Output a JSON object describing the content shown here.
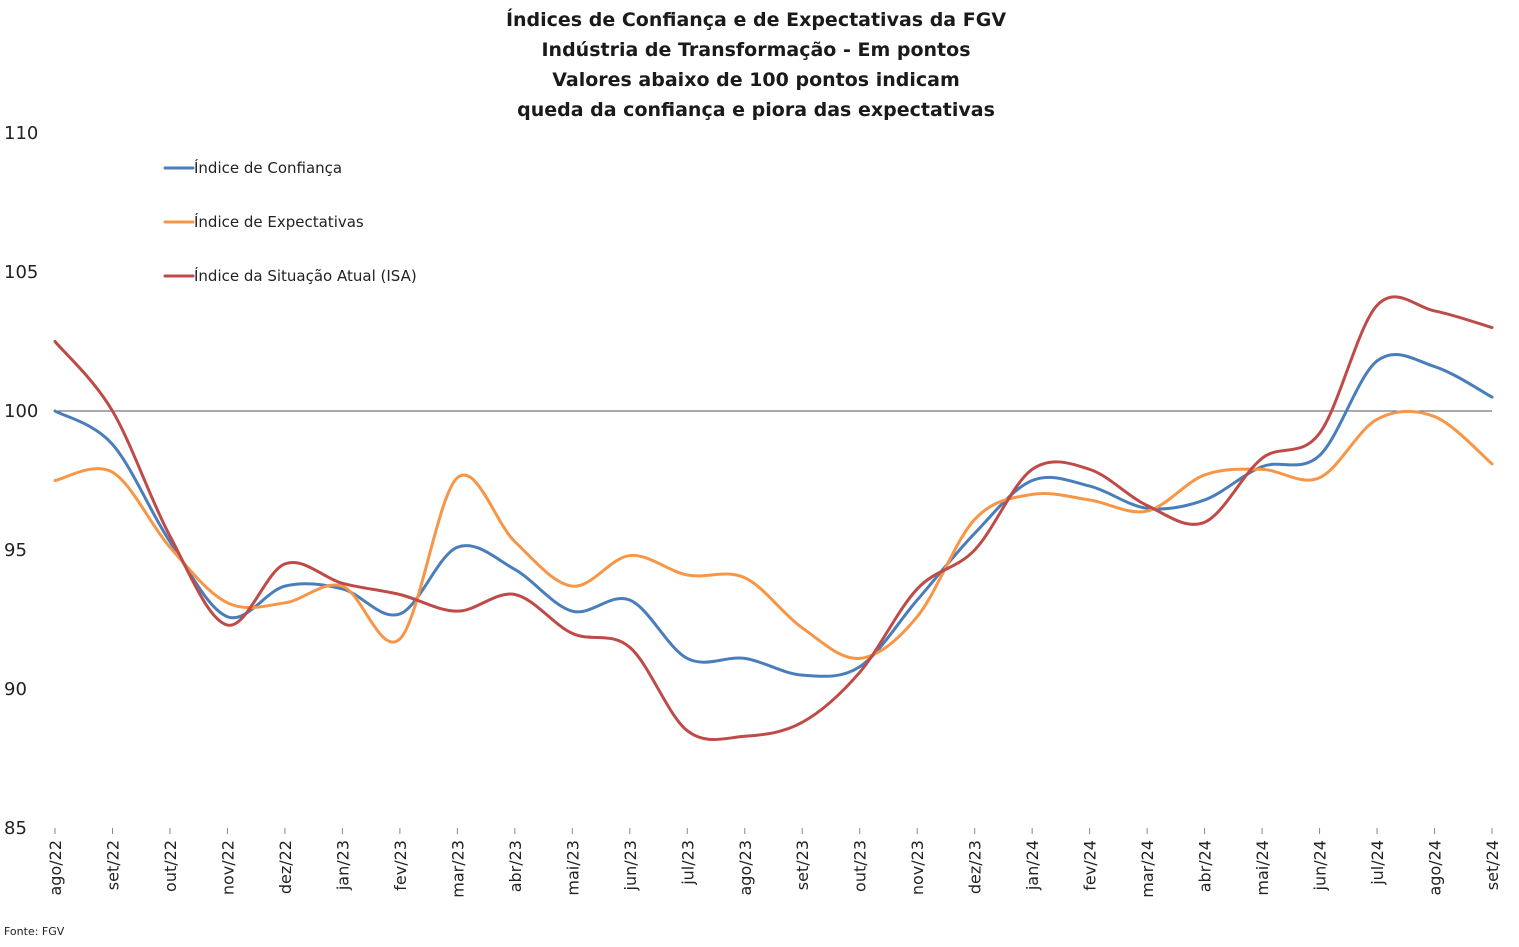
{
  "chart_data": {
    "type": "line",
    "title": [
      "Índices de Confiança e de Expectativas da FGV",
      "Indústria de Transformação - Em pontos",
      "Valores abaixo de 100 pontos indicam",
      "queda da confiança e piora das expectativas"
    ],
    "xlabel": "",
    "ylabel": "",
    "ylim": [
      85,
      110
    ],
    "yticks": [
      "85",
      "90",
      "95",
      "100",
      "105",
      "110"
    ],
    "reference_line": 100,
    "categories": [
      "ago/22",
      "set/22",
      "out/22",
      "nov/22",
      "dez/22",
      "jan/23",
      "fev/23",
      "mar/23",
      "abr/23",
      "mai/23",
      "jun/23",
      "jul/23",
      "ago/23",
      "set/23",
      "out/23",
      "nov/23",
      "dez/23",
      "jan/24",
      "fev/24",
      "mar/24",
      "abr/24",
      "mai/24",
      "jun/24",
      "jul/24",
      "ago/24",
      "set/24"
    ],
    "series": [
      {
        "name": "Índice de Confiança",
        "color": "#4a7ebb",
        "values": [
          100.0,
          98.8,
          95.3,
          92.6,
          93.7,
          93.6,
          92.7,
          95.1,
          94.3,
          92.8,
          93.2,
          91.1,
          91.1,
          90.5,
          90.8,
          93.2,
          95.6,
          97.5,
          97.3,
          96.5,
          96.8,
          98.0,
          98.4,
          101.8,
          101.6,
          100.5
        ]
      },
      {
        "name": "Índice de Expectativas",
        "color": "#f79646",
        "values": [
          97.5,
          97.8,
          95.1,
          93.1,
          93.1,
          93.7,
          91.8,
          97.6,
          95.3,
          93.7,
          94.8,
          94.1,
          94.0,
          92.2,
          91.1,
          92.6,
          96.1,
          97.0,
          96.8,
          96.4,
          97.7,
          97.9,
          97.6,
          99.7,
          99.8,
          98.1
        ]
      },
      {
        "name": "Índice da Situação Atual (ISA)",
        "color": "#be4b48",
        "values": [
          102.5,
          100.0,
          95.5,
          92.3,
          94.5,
          93.8,
          93.4,
          92.8,
          93.4,
          92.0,
          91.5,
          88.5,
          88.3,
          88.8,
          90.6,
          93.6,
          95.0,
          97.9,
          97.9,
          96.6,
          96.0,
          98.3,
          99.2,
          103.8,
          103.6,
          103.0
        ]
      }
    ],
    "legend_position": "top-left",
    "grid": false
  },
  "source_note": "Fonte: FGV"
}
